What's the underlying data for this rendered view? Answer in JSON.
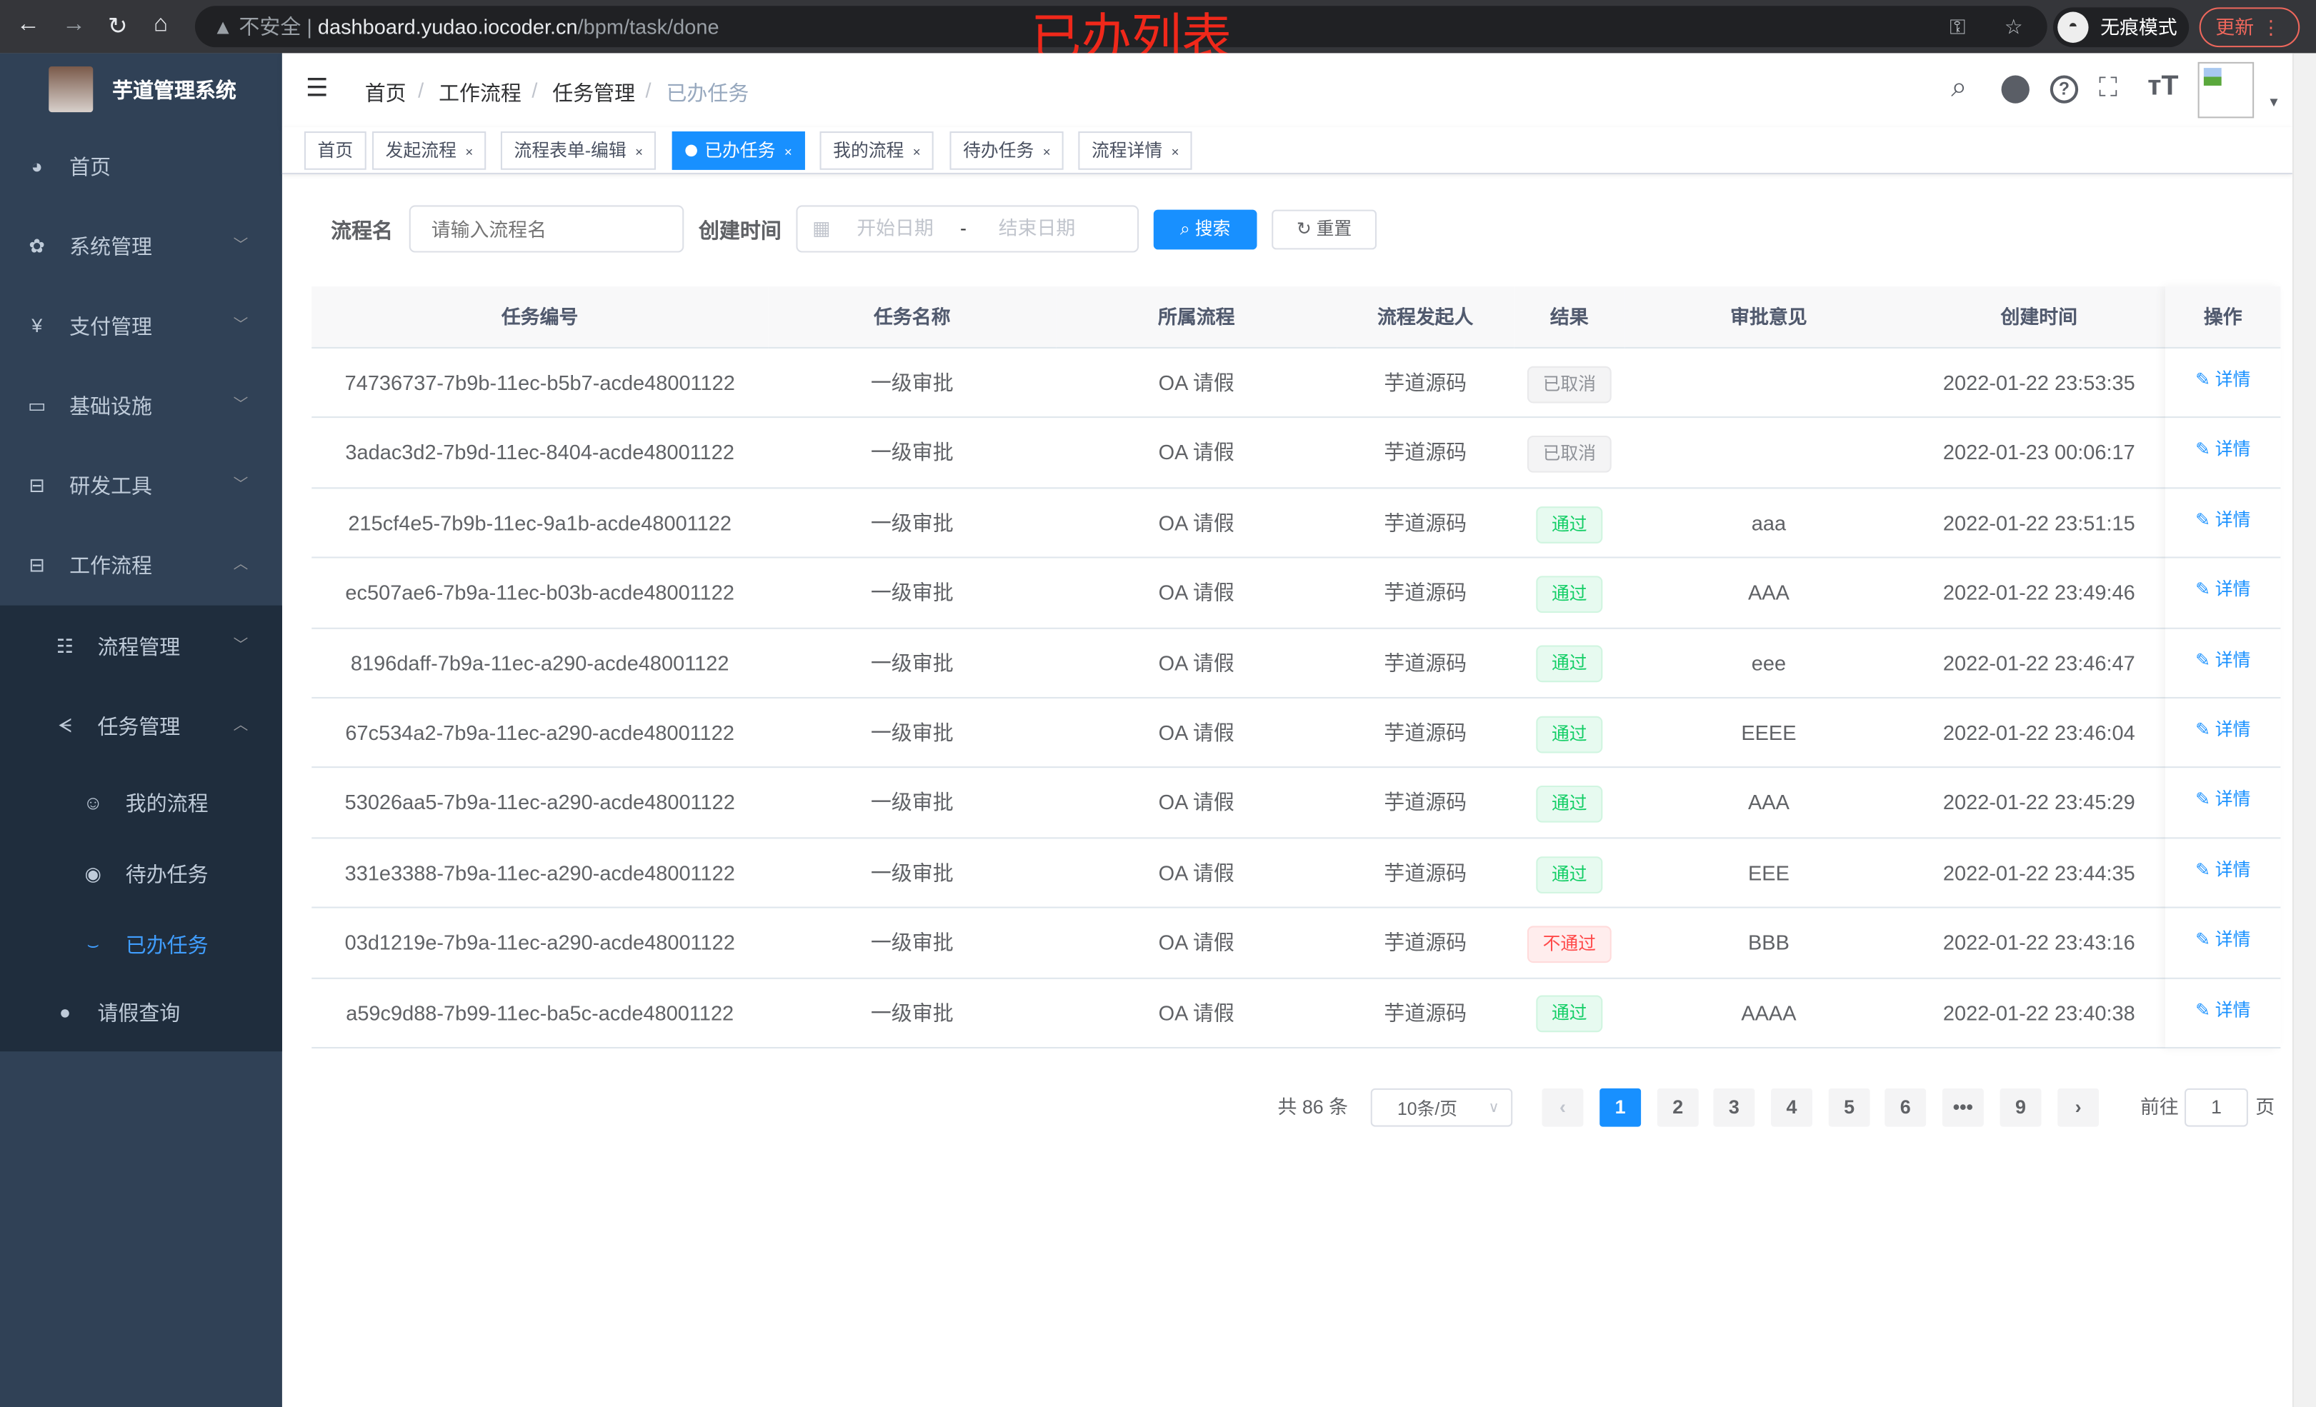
{
  "browser": {
    "url_warning": "不安全",
    "url_host": "dashboard.yudao.iocoder.cn",
    "url_path": "/bpm/task/done",
    "incognito_label": "无痕模式",
    "update_label": "更新"
  },
  "overlay_title": "已办列表",
  "app": {
    "title": "芋道管理系统"
  },
  "sidebar": {
    "items": [
      {
        "label": "首页",
        "icon": "dashboard-icon"
      },
      {
        "label": "系统管理",
        "icon": "gear-icon"
      },
      {
        "label": "支付管理",
        "icon": "yen-icon"
      },
      {
        "label": "基础设施",
        "icon": "monitor-icon"
      },
      {
        "label": "研发工具",
        "icon": "toolbox-icon"
      },
      {
        "label": "工作流程",
        "icon": "toolbox-icon"
      }
    ],
    "sub_items": [
      {
        "label": "流程管理",
        "icon": "list-icon"
      },
      {
        "label": "任务管理",
        "icon": "task-icon"
      },
      {
        "label": "我的流程",
        "icon": "face-icon"
      },
      {
        "label": "待办任务",
        "icon": "eye-icon"
      },
      {
        "label": "已办任务",
        "icon": "eye-closed-icon"
      },
      {
        "label": "请假查询",
        "icon": "user-icon"
      }
    ],
    "active_color": "#409eff"
  },
  "breadcrumb": [
    "首页",
    "工作流程",
    "任务管理",
    "已办任务"
  ],
  "tags": [
    {
      "label": "首页"
    },
    {
      "label": "发起流程"
    },
    {
      "label": "流程表单-编辑"
    },
    {
      "label": "已办任务",
      "active": true
    },
    {
      "label": "我的流程"
    },
    {
      "label": "待办任务"
    },
    {
      "label": "流程详情"
    }
  ],
  "filters": {
    "name_label": "流程名",
    "name_placeholder": "请输入流程名",
    "time_label": "创建时间",
    "start_placeholder": "开始日期",
    "range_sep": "-",
    "end_placeholder": "结束日期",
    "search_label": "搜索",
    "reset_label": "重置"
  },
  "table": {
    "columns": [
      "任务编号",
      "任务名称",
      "所属流程",
      "流程发起人",
      "结果",
      "审批意见",
      "创建时间",
      "操作"
    ],
    "action_label": "详情",
    "rows": [
      {
        "id": "74736737-7b9b-11ec-b5b7-acde48001122",
        "name": "一级审批",
        "process": "OA 请假",
        "starter": "芋道源码",
        "result": "已取消",
        "status": "cancel",
        "comment": "",
        "time": "2022-01-22 23:53:35"
      },
      {
        "id": "3adac3d2-7b9d-11ec-8404-acde48001122",
        "name": "一级审批",
        "process": "OA 请假",
        "starter": "芋道源码",
        "result": "已取消",
        "status": "cancel",
        "comment": "",
        "time": "2022-01-23 00:06:17"
      },
      {
        "id": "215cf4e5-7b9b-11ec-9a1b-acde48001122",
        "name": "一级审批",
        "process": "OA 请假",
        "starter": "芋道源码",
        "result": "通过",
        "status": "pass",
        "comment": "aaa",
        "time": "2022-01-22 23:51:15"
      },
      {
        "id": "ec507ae6-7b9a-11ec-b03b-acde48001122",
        "name": "一级审批",
        "process": "OA 请假",
        "starter": "芋道源码",
        "result": "通过",
        "status": "pass",
        "comment": "AAA",
        "time": "2022-01-22 23:49:46"
      },
      {
        "id": "8196daff-7b9a-11ec-a290-acde48001122",
        "name": "一级审批",
        "process": "OA 请假",
        "starter": "芋道源码",
        "result": "通过",
        "status": "pass",
        "comment": "eee",
        "time": "2022-01-22 23:46:47"
      },
      {
        "id": "67c534a2-7b9a-11ec-a290-acde48001122",
        "name": "一级审批",
        "process": "OA 请假",
        "starter": "芋道源码",
        "result": "通过",
        "status": "pass",
        "comment": "EEEE",
        "time": "2022-01-22 23:46:04"
      },
      {
        "id": "53026aa5-7b9a-11ec-a290-acde48001122",
        "name": "一级审批",
        "process": "OA 请假",
        "starter": "芋道源码",
        "result": "通过",
        "status": "pass",
        "comment": "AAA",
        "time": "2022-01-22 23:45:29"
      },
      {
        "id": "331e3388-7b9a-11ec-a290-acde48001122",
        "name": "一级审批",
        "process": "OA 请假",
        "starter": "芋道源码",
        "result": "通过",
        "status": "pass",
        "comment": "EEE",
        "time": "2022-01-22 23:44:35"
      },
      {
        "id": "03d1219e-7b9a-11ec-a290-acde48001122",
        "name": "一级审批",
        "process": "OA 请假",
        "starter": "芋道源码",
        "result": "不通过",
        "status": "reject",
        "comment": "BBB",
        "time": "2022-01-22 23:43:16"
      },
      {
        "id": "a59c9d88-7b99-11ec-ba5c-acde48001122",
        "name": "一级审批",
        "process": "OA 请假",
        "starter": "芋道源码",
        "result": "通过",
        "status": "pass",
        "comment": "AAAA",
        "time": "2022-01-22 23:40:38"
      }
    ]
  },
  "pagination": {
    "total_label": "共 86 条",
    "page_size": "10条/页",
    "pages": [
      "1",
      "2",
      "3",
      "4",
      "5",
      "6",
      "•••",
      "9"
    ],
    "current": "1",
    "goto_label": "前往",
    "goto_value": "1",
    "page_suffix": "页"
  }
}
